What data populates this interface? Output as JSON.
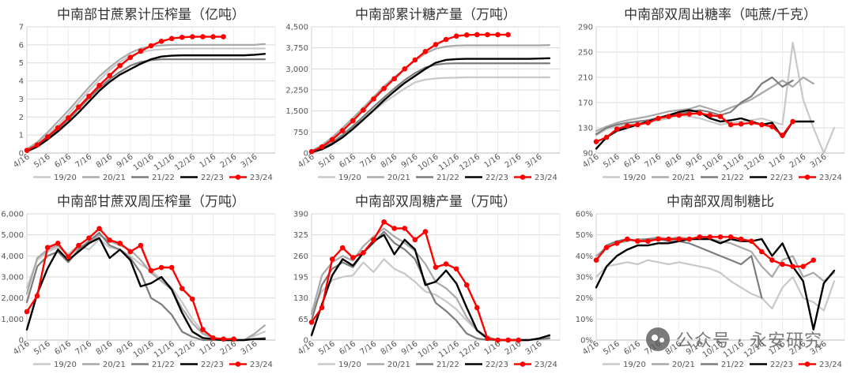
{
  "watermark": {
    "icon": "wechat-icon",
    "text": "公众号 · 永安研究"
  },
  "colors": {
    "19/20": "#c8c8c8",
    "20/21": "#a8a8a8",
    "21/22": "#7c7c7c",
    "22/23": "#000000",
    "23/24": "#ff0000"
  },
  "chart_data": [
    {
      "type": "line",
      "title": "中南部甘蔗累计压榨量（亿吨）",
      "xlabel": "",
      "ylabel": "",
      "x_ticks": [
        "4/16",
        "5/16",
        "6/16",
        "7/16",
        "8/16",
        "9/16",
        "10/16",
        "11/16",
        "12/16",
        "1/16",
        "2/16",
        "3/16"
      ],
      "ylim": [
        0,
        7
      ],
      "y_ticks": [
        "0",
        "1",
        "2",
        "3",
        "4",
        "5",
        "6",
        "7"
      ],
      "grid": true,
      "legend_position": "bottom",
      "series": [
        {
          "name": "19/20",
          "values": [
            0.18,
            0.5,
            1.0,
            1.55,
            2.15,
            2.8,
            3.45,
            4.05,
            4.6,
            5.05,
            5.4,
            5.6,
            5.7,
            5.75,
            5.78,
            5.8,
            5.8,
            5.8,
            5.8,
            5.8,
            5.8,
            5.8,
            5.8,
            5.8
          ]
        },
        {
          "name": "20/21",
          "values": [
            0.22,
            0.6,
            1.15,
            1.75,
            2.35,
            3.0,
            3.65,
            4.25,
            4.75,
            5.2,
            5.55,
            5.8,
            5.92,
            5.97,
            6.0,
            6.0,
            6.0,
            6.0,
            6.0,
            6.0,
            6.0,
            6.0,
            6.0,
            6.05
          ]
        },
        {
          "name": "21/22",
          "values": [
            0.12,
            0.38,
            0.8,
            1.3,
            1.85,
            2.45,
            3.05,
            3.6,
            4.1,
            4.5,
            4.85,
            5.05,
            5.15,
            5.2,
            5.2,
            5.2,
            5.2,
            5.2,
            5.2,
            5.2,
            5.2,
            5.2,
            5.2,
            5.2
          ]
        },
        {
          "name": "22/23",
          "values": [
            0.1,
            0.35,
            0.75,
            1.2,
            1.7,
            2.25,
            2.85,
            3.45,
            3.95,
            4.35,
            4.65,
            4.95,
            5.2,
            5.35,
            5.4,
            5.42,
            5.42,
            5.42,
            5.42,
            5.42,
            5.42,
            5.42,
            5.45,
            5.5
          ]
        },
        {
          "name": "23/24",
          "values": [
            0.15,
            0.45,
            0.9,
            1.4,
            1.95,
            2.55,
            3.15,
            3.75,
            4.3,
            4.85,
            5.3,
            5.65,
            5.95,
            6.2,
            6.35,
            6.42,
            6.45,
            6.45,
            6.45,
            6.45
          ]
        }
      ]
    },
    {
      "type": "line",
      "title": "中南部累计糖产量（万吨）",
      "xlabel": "",
      "ylabel": "",
      "x_ticks": [
        "4/16",
        "5/16",
        "6/16",
        "7/16",
        "8/16",
        "9/16",
        "10/16",
        "11/16",
        "12/16",
        "1/16",
        "2/16",
        "3/16"
      ],
      "ylim": [
        0,
        4500
      ],
      "y_ticks": [
        "0",
        "750",
        "1,500",
        "2,250",
        "3,000",
        "3,750",
        "4,500"
      ],
      "grid": true,
      "legend_position": "bottom",
      "series": [
        {
          "name": "19/20",
          "values": [
            60,
            200,
            380,
            620,
            900,
            1200,
            1500,
            1800,
            2050,
            2300,
            2520,
            2620,
            2660,
            2680,
            2690,
            2700,
            2700,
            2700,
            2700,
            2700,
            2700,
            2700,
            2700,
            2700
          ]
        },
        {
          "name": "20/21",
          "values": [
            80,
            280,
            560,
            900,
            1250,
            1620,
            2000,
            2380,
            2700,
            3000,
            3300,
            3550,
            3720,
            3800,
            3830,
            3840,
            3840,
            3840,
            3840,
            3840,
            3840,
            3840,
            3840,
            3850
          ]
        },
        {
          "name": "21/22",
          "values": [
            40,
            170,
            380,
            650,
            960,
            1300,
            1650,
            1980,
            2300,
            2600,
            2850,
            3050,
            3150,
            3190,
            3200,
            3200,
            3200,
            3200,
            3200,
            3200,
            3200,
            3200,
            3200,
            3200
          ]
        },
        {
          "name": "22/23",
          "values": [
            30,
            130,
            320,
            560,
            860,
            1190,
            1530,
            1880,
            2200,
            2500,
            2750,
            3000,
            3220,
            3320,
            3350,
            3360,
            3360,
            3360,
            3360,
            3360,
            3360,
            3360,
            3370,
            3380
          ]
        },
        {
          "name": "23/24",
          "values": [
            50,
            220,
            480,
            800,
            1150,
            1530,
            1930,
            2300,
            2650,
            3000,
            3320,
            3620,
            3870,
            4050,
            4170,
            4210,
            4220,
            4220,
            4220,
            4220
          ]
        }
      ]
    },
    {
      "type": "line",
      "title": "中南部双周出糖率（吨蔗/千克）",
      "xlabel": "",
      "ylabel": "",
      "x_ticks": [
        "4/16",
        "5/16",
        "6/16",
        "7/16",
        "8/16",
        "9/16",
        "10/16",
        "11/16",
        "12/16",
        "1/16",
        "2/16",
        "3/16"
      ],
      "ylim": [
        90,
        290
      ],
      "y_ticks": [
        "90",
        "130",
        "170",
        "210",
        "250",
        "290"
      ],
      "grid": true,
      "legend_position": "bottom",
      "series": [
        {
          "name": "19/20",
          "values": [
            118,
            128,
            132,
            135,
            136,
            138,
            142,
            145,
            150,
            148,
            145,
            140,
            135,
            138,
            140,
            142,
            145,
            140,
            135,
            265,
            175,
            130,
            90,
            130
          ]
        },
        {
          "name": "20/21",
          "values": [
            125,
            132,
            138,
            142,
            145,
            148,
            152,
            156,
            158,
            160,
            165,
            160,
            155,
            162,
            168,
            175,
            185,
            195,
            205,
            195,
            210,
            200
          ]
        },
        {
          "name": "21/22",
          "values": [
            120,
            130,
            135,
            138,
            140,
            142,
            146,
            150,
            152,
            155,
            158,
            155,
            150,
            155,
            170,
            180,
            200,
            210,
            195,
            205
          ]
        },
        {
          "name": "22/23",
          "values": [
            97,
            115,
            125,
            130,
            135,
            140,
            145,
            150,
            155,
            158,
            155,
            145,
            140,
            142,
            145,
            140,
            135,
            138,
            115,
            140,
            140,
            140
          ]
        },
        {
          "name": "23/24",
          "values": [
            108,
            115,
            128,
            133,
            135,
            138,
            145,
            148,
            150,
            152,
            153,
            150,
            148,
            135,
            136,
            138,
            135,
            132,
            118,
            140
          ]
        }
      ]
    },
    {
      "type": "line",
      "title": "中南部甘蔗双周压榨量（万吨）",
      "xlabel": "",
      "ylabel": "",
      "x_ticks": [
        "4/16",
        "5/16",
        "6/16",
        "7/16",
        "8/16",
        "9/16",
        "10/16",
        "11/16",
        "12/16",
        "1/16",
        "2/16",
        "3/16"
      ],
      "ylim": [
        0,
        6000
      ],
      "y_ticks": [
        "0",
        "1,000",
        "2,000",
        "3,000",
        "4,000",
        "5,000",
        "6,000"
      ],
      "grid": true,
      "legend_position": "bottom",
      "series": [
        {
          "name": "19/20",
          "values": [
            2500,
            3800,
            4200,
            4400,
            4100,
            4500,
            4300,
            4800,
            4400,
            4300,
            4000,
            3600,
            3300,
            2900,
            2500,
            1800,
            1000,
            400,
            100,
            50,
            0,
            0,
            200,
            400
          ]
        },
        {
          "name": "20/21",
          "values": [
            2200,
            3900,
            4300,
            4500,
            4000,
            4400,
            4600,
            5000,
            4700,
            4500,
            4300,
            3800,
            3200,
            2800,
            2400,
            1500,
            800,
            300,
            100,
            0,
            0,
            0,
            300,
            700
          ]
        },
        {
          "name": "21/22",
          "values": [
            1800,
            3500,
            4000,
            4200,
            3700,
            4300,
            4700,
            5100,
            4500,
            4300,
            3900,
            3200,
            2000,
            1700,
            1200,
            400,
            150,
            0,
            0,
            0,
            0,
            0,
            50,
            100
          ]
        },
        {
          "name": "22/23",
          "values": [
            500,
            2200,
            3400,
            4300,
            3800,
            4200,
            4600,
            4850,
            3900,
            4300,
            3800,
            2550,
            2700,
            3000,
            2400,
            1300,
            400,
            100,
            50,
            0,
            0,
            0,
            50,
            50
          ]
        },
        {
          "name": "23/24",
          "values": [
            1350,
            2100,
            4400,
            4600,
            3950,
            4500,
            4850,
            5300,
            4750,
            4600,
            4200,
            4500,
            3300,
            3450,
            3450,
            2450,
            1950,
            500,
            100,
            50,
            50
          ]
        }
      ]
    },
    {
      "type": "line",
      "title": "中南部双周糖产量（万吨）",
      "xlabel": "",
      "ylabel": "",
      "x_ticks": [
        "4/16",
        "5/16",
        "6/16",
        "7/16",
        "8/16",
        "9/16",
        "10/16",
        "11/16",
        "12/16",
        "1/16",
        "2/16",
        "3/16"
      ],
      "ylim": [
        0,
        390
      ],
      "y_ticks": [
        "0",
        "65",
        "130",
        "195",
        "260",
        "325",
        "390"
      ],
      "grid": true,
      "legend_position": "bottom",
      "series": [
        {
          "name": "19/20",
          "values": [
            90,
            150,
            185,
            195,
            200,
            240,
            210,
            250,
            220,
            205,
            180,
            150,
            140,
            120,
            95,
            60,
            30,
            10,
            0,
            0,
            0,
            0,
            5,
            10
          ]
        },
        {
          "name": "20/21",
          "values": [
            80,
            200,
            240,
            260,
            245,
            290,
            320,
            345,
            320,
            300,
            275,
            235,
            180,
            160,
            130,
            70,
            30,
            10,
            0,
            0,
            0,
            0,
            5,
            10
          ]
        },
        {
          "name": "21/22",
          "values": [
            60,
            170,
            220,
            240,
            225,
            270,
            300,
            335,
            300,
            280,
            250,
            180,
            115,
            90,
            60,
            20,
            5,
            0,
            0,
            0,
            0,
            0,
            3,
            5
          ]
        },
        {
          "name": "22/23",
          "values": [
            15,
            110,
            200,
            250,
            230,
            270,
            305,
            325,
            265,
            310,
            280,
            170,
            180,
            215,
            175,
            100,
            30,
            5,
            0,
            0,
            0,
            0,
            5,
            15
          ]
        },
        {
          "name": "23/24",
          "values": [
            55,
            100,
            250,
            285,
            255,
            270,
            310,
            365,
            345,
            345,
            310,
            335,
            225,
            235,
            220,
            170,
            100,
            5,
            0,
            0,
            0
          ]
        }
      ]
    },
    {
      "type": "line",
      "title": "中南部双周制糖比",
      "xlabel": "",
      "ylabel": "",
      "x_ticks": [
        "4/16",
        "5/16",
        "6/16",
        "7/16",
        "8/16",
        "9/16",
        "10/16",
        "11/16",
        "12/16",
        "1/16",
        "2/16",
        "3/16"
      ],
      "ylim": [
        0,
        60
      ],
      "y_ticks": [
        "0%",
        "10%",
        "20%",
        "30%",
        "40%",
        "50%",
        "60%"
      ],
      "grid": true,
      "legend_position": "bottom",
      "series": [
        {
          "name": "19/20",
          "values": [
            30,
            35,
            36,
            37,
            36,
            38,
            37,
            36,
            37,
            36,
            35,
            34,
            32,
            28,
            25,
            22,
            20,
            15,
            25,
            30,
            20,
            18,
            14,
            28
          ]
        },
        {
          "name": "20/21",
          "values": [
            40,
            44,
            46,
            47,
            48,
            48,
            49,
            48,
            49,
            48,
            49,
            48,
            47,
            46,
            44,
            42,
            35,
            30,
            38,
            40,
            30,
            32,
            28,
            32
          ]
        },
        {
          "name": "21/22",
          "values": [
            38,
            45,
            47,
            48,
            47,
            48,
            48,
            47,
            47,
            46,
            44,
            42,
            40,
            38,
            36,
            40,
            20
          ]
        },
        {
          "name": "22/23",
          "values": [
            25,
            35,
            40,
            43,
            45,
            45,
            46,
            46,
            47,
            48,
            48,
            48,
            46,
            48,
            47,
            47,
            48,
            40,
            46,
            35,
            28,
            5,
            27,
            33
          ]
        },
        {
          "name": "23/24",
          "values": [
            38,
            44,
            46,
            48,
            47,
            47,
            48,
            48,
            48,
            48,
            49,
            49,
            49,
            49,
            48,
            47,
            42,
            38,
            36,
            35,
            35,
            38
          ]
        }
      ]
    }
  ]
}
